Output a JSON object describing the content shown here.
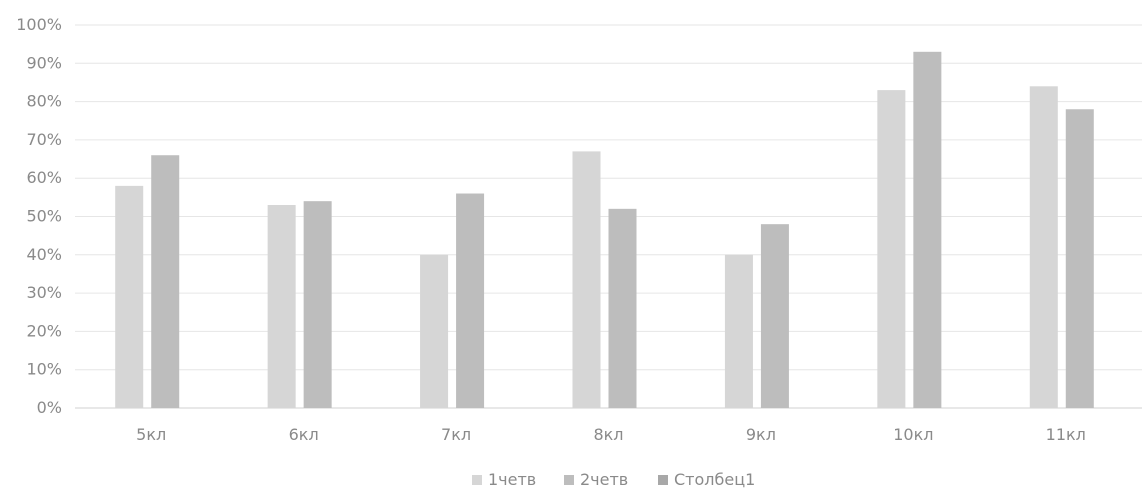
{
  "chart_data": {
    "type": "bar",
    "categories": [
      "5кл",
      "6кл",
      "7кл",
      "8кл",
      "9кл",
      "10кл",
      "11кл"
    ],
    "series": [
      {
        "name": "1четв",
        "values": [
          58,
          53,
          40,
          67,
          40,
          83,
          84
        ],
        "color": "#d6d6d6"
      },
      {
        "name": "2четв",
        "values": [
          66,
          54,
          56,
          52,
          48,
          93,
          78
        ],
        "color": "#bdbdbd"
      },
      {
        "name": "Столбец1",
        "values": [
          null,
          null,
          null,
          null,
          null,
          null,
          null
        ],
        "color": "#a8a8a8"
      }
    ],
    "y_ticks": [
      "0%",
      "10%",
      "20%",
      "30%",
      "40%",
      "50%",
      "60%",
      "70%",
      "80%",
      "90%",
      "100%"
    ],
    "ylim": [
      0,
      100
    ],
    "grid": true,
    "legend_position": "bottom"
  }
}
